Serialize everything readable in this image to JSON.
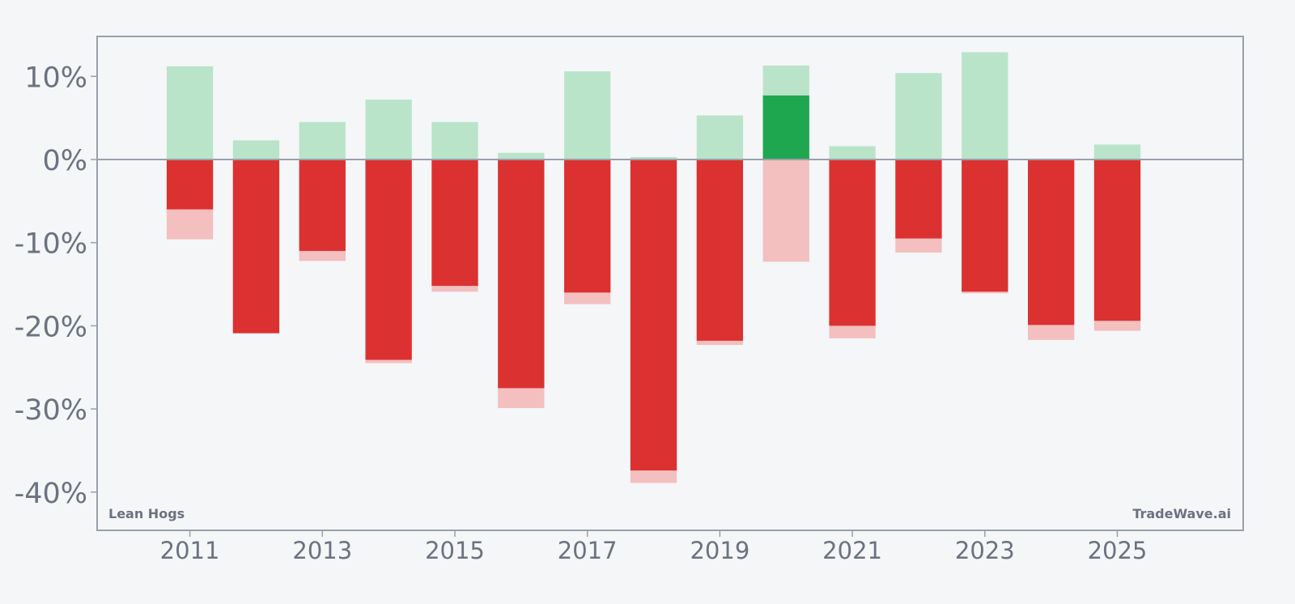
{
  "chart_data": {
    "type": "bar",
    "subtitle_left": "Lean Hogs",
    "watermark": "TradeWave.ai",
    "x_ticks": [
      "2011",
      "2013",
      "2015",
      "2017",
      "2019",
      "2021",
      "2023",
      "2025"
    ],
    "y_ticks": [
      "10%",
      "0%",
      "-10%",
      "-20%",
      "-30%",
      "-40%"
    ],
    "ylim": [
      -44.6,
      14.8
    ],
    "xlim": [
      2009.6,
      2026.9
    ],
    "grid": false,
    "highlight_year": 2020,
    "years": [
      2011,
      2012,
      2013,
      2014,
      2015,
      2016,
      2017,
      2018,
      2019,
      2020,
      2021,
      2022,
      2023,
      2024,
      2025
    ],
    "series": [
      {
        "name": "max_gain",
        "values": [
          11.2,
          2.3,
          4.5,
          7.2,
          4.5,
          0.8,
          10.6,
          0.3,
          5.3,
          11.3,
          1.6,
          10.4,
          12.9,
          0.1,
          1.8
        ]
      },
      {
        "name": "max_loss",
        "values": [
          -9.6,
          -20.9,
          -12.2,
          -24.5,
          -15.9,
          -29.9,
          -17.4,
          -38.9,
          -22.3,
          -12.3,
          -21.5,
          -11.2,
          -16.1,
          -21.7,
          -20.6
        ]
      },
      {
        "name": "return",
        "values": [
          -6.0,
          -20.9,
          -11.0,
          -24.1,
          -15.2,
          -27.5,
          -16.0,
          -37.4,
          -21.8,
          7.7,
          -20.0,
          -9.5,
          -15.9,
          -19.9,
          -19.4
        ]
      }
    ],
    "colors": {
      "gain_light": "#b9e4c9",
      "loss_light": "#f4bfbf",
      "loss_strong": "#dc3131",
      "gain_strong": "#1fa750",
      "axis": "#9aa0ab",
      "zero_line": "#9aa0ab",
      "text": "#6b7280",
      "background": "#f4f6f8"
    }
  }
}
